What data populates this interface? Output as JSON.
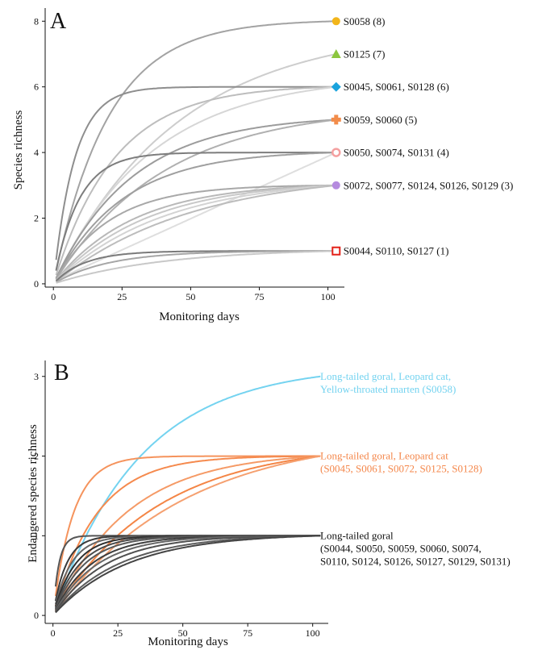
{
  "chart_data": [
    {
      "type": "line",
      "panel": "A",
      "xlabel": "Monitoring days",
      "ylabel": "Species richness",
      "xlim": [
        -3,
        106
      ],
      "ylim": [
        -0.1,
        8.4
      ],
      "xticks": [
        0,
        25,
        50,
        75,
        100
      ],
      "yticks": [
        0,
        2,
        4,
        6,
        8
      ],
      "grid": false,
      "legend": "labels at right end of lines",
      "groups": [
        {
          "label": "S0058 (8)",
          "final": 8,
          "marker": "circle",
          "color": "#F2B51A"
        },
        {
          "label": "S0125 (7)",
          "final": 7,
          "marker": "triangle",
          "color": "#8CC63F"
        },
        {
          "label": "S0045, S0061, S0128 (6)",
          "final": 6,
          "marker": "diamond",
          "color": "#1AA3DD"
        },
        {
          "label": "S0059, S0060 (5)",
          "final": 5,
          "marker": "plus",
          "color": "#F28C4A"
        },
        {
          "label": "S0050, S0074, S0131 (4)",
          "final": 4,
          "marker": "circle-open",
          "color": "#F4A0A0"
        },
        {
          "label": "S0072, S0077, S0124, S0126, S0129 (3)",
          "final": 3,
          "marker": "circle",
          "color": "#B58BDF"
        },
        {
          "label": "S0044, S0110, S0127 (1)",
          "final": 1,
          "marker": "square-open",
          "color": "#E32119"
        }
      ],
      "series": [
        {
          "final": 8,
          "rate": 0.05,
          "shape": "sat",
          "color": "#a3a3a3"
        },
        {
          "final": 7,
          "rate": 0.022,
          "shape": "sat",
          "color": "#cdcdcd"
        },
        {
          "final": 6,
          "rate": 0.13,
          "shape": "sat",
          "color": "#8e8e8e"
        },
        {
          "final": 6,
          "rate": 0.045,
          "shape": "sat",
          "color": "#bdbdbd"
        },
        {
          "final": 6,
          "rate": 0.028,
          "shape": "sat",
          "color": "#d6d6d6"
        },
        {
          "final": 5,
          "rate": 0.035,
          "shape": "sat",
          "color": "#9c9c9c"
        },
        {
          "final": 5,
          "rate": 0.025,
          "shape": "sat",
          "color": "#b0b0b0"
        },
        {
          "final": 4,
          "rate": 0.11,
          "shape": "sat",
          "color": "#7d7d7d"
        },
        {
          "final": 4,
          "rate": 0.04,
          "shape": "sat",
          "color": "#9f9f9f"
        },
        {
          "final": 4,
          "rate": 0.012,
          "shape": "lin",
          "color": "#dedede"
        },
        {
          "final": 3,
          "rate": 0.05,
          "shape": "sat",
          "color": "#a8a8a8"
        },
        {
          "final": 3,
          "rate": 0.035,
          "shape": "sat",
          "color": "#b8b8b8"
        },
        {
          "final": 3,
          "rate": 0.03,
          "shape": "sat",
          "color": "#c8c8c8"
        },
        {
          "final": 3,
          "rate": 0.025,
          "shape": "sat",
          "color": "#d3d3d3"
        },
        {
          "final": 3,
          "rate": 0.02,
          "shape": "sat",
          "color": "#bcbcbc"
        },
        {
          "final": 1,
          "rate": 0.09,
          "shape": "sat",
          "color": "#7a7a7a"
        },
        {
          "final": 1,
          "rate": 0.05,
          "shape": "sat",
          "color": "#a6a6a6"
        },
        {
          "final": 1,
          "rate": 0.025,
          "shape": "sat",
          "color": "#c8c8c8"
        }
      ]
    },
    {
      "type": "line",
      "panel": "B",
      "xlabel": "Monitoring days",
      "ylabel": "Endangered species richness",
      "xlim": [
        -3,
        106
      ],
      "ylim": [
        -0.1,
        3.2
      ],
      "xticks": [
        0,
        25,
        50,
        75,
        100
      ],
      "yticks": [
        0,
        1,
        2,
        3
      ],
      "grid": false,
      "legend": "labels at right end of lines",
      "groups": [
        {
          "lines": [
            "Long-tailed goral, Leopard cat,",
            "Yellow-throated marten (S0058)"
          ],
          "final": 3,
          "color": "#74D3F0"
        },
        {
          "lines": [
            "Long-tailed goral, Leopard cat",
            " (S0045, S0061, S0072, S0125, S0128)"
          ],
          "final": 2,
          "color": "#F4874B"
        },
        {
          "lines": [
            "Long-tailed goral",
            "(S0044, S0050, S0059, S0060, S0074,",
            "S0110, S0124, S0126, S0127, S0129, S0131)"
          ],
          "final": 1,
          "color": "#111111"
        }
      ],
      "series": [
        {
          "final": 3,
          "rate": 0.03,
          "shape": "sat",
          "color": "#74D3F0"
        },
        {
          "final": 2,
          "rate": 0.13,
          "shape": "sat",
          "color": "#F5935C"
        },
        {
          "final": 2,
          "rate": 0.06,
          "shape": "sat",
          "color": "#F58A4E"
        },
        {
          "final": 2,
          "rate": 0.035,
          "shape": "sat",
          "color": "#F59A66"
        },
        {
          "final": 2,
          "rate": 0.025,
          "shape": "sat",
          "color": "#F48545"
        },
        {
          "final": 2,
          "rate": 0.02,
          "shape": "sat",
          "color": "#F5A070"
        },
        {
          "final": 1,
          "rate": 0.45,
          "shape": "sat",
          "color": "#555555"
        },
        {
          "final": 1,
          "rate": 0.2,
          "shape": "sat",
          "color": "#3a3a3a"
        },
        {
          "final": 1,
          "rate": 0.15,
          "shape": "sat",
          "color": "#666666"
        },
        {
          "final": 1,
          "rate": 0.12,
          "shape": "sat",
          "color": "#2f2f2f"
        },
        {
          "final": 1,
          "rate": 0.1,
          "shape": "sat",
          "color": "#4a4a4a"
        },
        {
          "final": 1,
          "rate": 0.085,
          "shape": "sat",
          "color": "#585858"
        },
        {
          "final": 1,
          "rate": 0.07,
          "shape": "sat",
          "color": "#3d3d3d"
        },
        {
          "final": 1,
          "rate": 0.06,
          "shape": "sat",
          "color": "#666666"
        },
        {
          "final": 1,
          "rate": 0.05,
          "shape": "sat",
          "color": "#4f4f4f"
        },
        {
          "final": 1,
          "rate": 0.04,
          "shape": "sat",
          "color": "#5c5c5c"
        },
        {
          "final": 1,
          "rate": 0.035,
          "shape": "sat",
          "color": "#444444"
        }
      ]
    }
  ]
}
